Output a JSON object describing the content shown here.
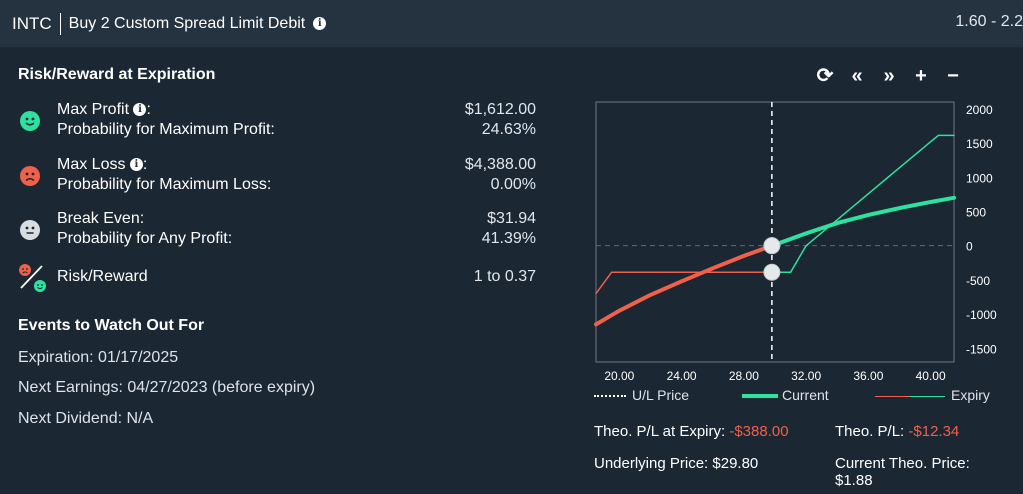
{
  "header": {
    "symbol": "INTC",
    "description": "Buy 2 Custom Spread Limit Debit",
    "price_range": "1.60 - 2.2"
  },
  "risk_reward": {
    "title": "Risk/Reward at Expiration",
    "rows": [
      {
        "label1": "Max Profit",
        "label1_suffix": ":",
        "label2": "Probability for Maximum Profit:",
        "value1": "$1,612.00",
        "value2": "24.63%",
        "icon": "smile-face-icon"
      },
      {
        "label1": "Max Loss",
        "label1_suffix": ":",
        "label2": "Probability for Maximum Loss:",
        "value1": "$4,388.00",
        "value2": "0.00%",
        "icon": "frown-face-icon"
      },
      {
        "label1": "Break Even:",
        "label2": "Probability for Any Profit:",
        "value1": "$31.94",
        "value2": "41.39%",
        "icon": "neutral-face-icon"
      },
      {
        "label1": "Risk/Reward",
        "value1": "1 to 0.37",
        "icon": "risk-reward-icon"
      }
    ]
  },
  "events": {
    "title": "Events to Watch Out For",
    "items": [
      "Expiration: 01/17/2025",
      "Next Earnings: 04/27/2023 (before expiry)",
      "Next Dividend: N/A"
    ]
  },
  "toolbar": {
    "refresh": "⟳",
    "prev": "«",
    "next": "»",
    "zoom_in": "+",
    "zoom_out": "−"
  },
  "colors": {
    "background": "#1b2733",
    "header": "#253341",
    "current": "#2de29e",
    "expiry": "#f0604a",
    "smile": "#2de29e",
    "frown": "#f0604a",
    "neutral": "#d8dde2"
  },
  "chart_data": {
    "type": "line",
    "x_ticks": [
      "20.00",
      "24.00",
      "28.00",
      "32.00",
      "36.00",
      "40.00"
    ],
    "y_ticks": [
      "2000",
      "1500",
      "1000",
      "500",
      "0",
      "-500",
      "-1000",
      "-1500"
    ],
    "xlim": [
      18.5,
      41.5
    ],
    "ylim": [
      -1700,
      2100
    ],
    "underlying_price": 29.8,
    "series": [
      {
        "name": "Current",
        "x": [
          18.5,
          20,
          22,
          24,
          26,
          28,
          29.8,
          32,
          34,
          36,
          38,
          40,
          41.5
        ],
        "y": [
          -1150,
          -950,
          -720,
          -520,
          -330,
          -150,
          0,
          180,
          330,
          450,
          550,
          640,
          700
        ]
      },
      {
        "name": "Expiry",
        "x": [
          18.5,
          19.5,
          28,
          29.8,
          31,
          32,
          34,
          36,
          38,
          40,
          40.5,
          41.5
        ],
        "y": [
          -700,
          -388,
          -388,
          -388,
          -388,
          0,
          380,
          760,
          1140,
          1520,
          1612,
          1612
        ]
      }
    ],
    "markers": [
      {
        "x": 29.8,
        "y": 0
      },
      {
        "x": 29.8,
        "y": -388
      }
    ],
    "legend": [
      {
        "name": "U/L Price"
      },
      {
        "name": "Current"
      },
      {
        "name": "Expiry"
      }
    ]
  },
  "stats": {
    "theo_pl_expiry_label": "Theo. P/L at Expiry:",
    "theo_pl_expiry_value": "-$388.00",
    "theo_pl_label": "Theo. P/L:",
    "theo_pl_value": "-$12.34",
    "underlying_label": "Underlying Price:",
    "underlying_value": "$29.80",
    "current_theo_label": "Current Theo. Price:",
    "current_theo_value": "$1.88"
  }
}
